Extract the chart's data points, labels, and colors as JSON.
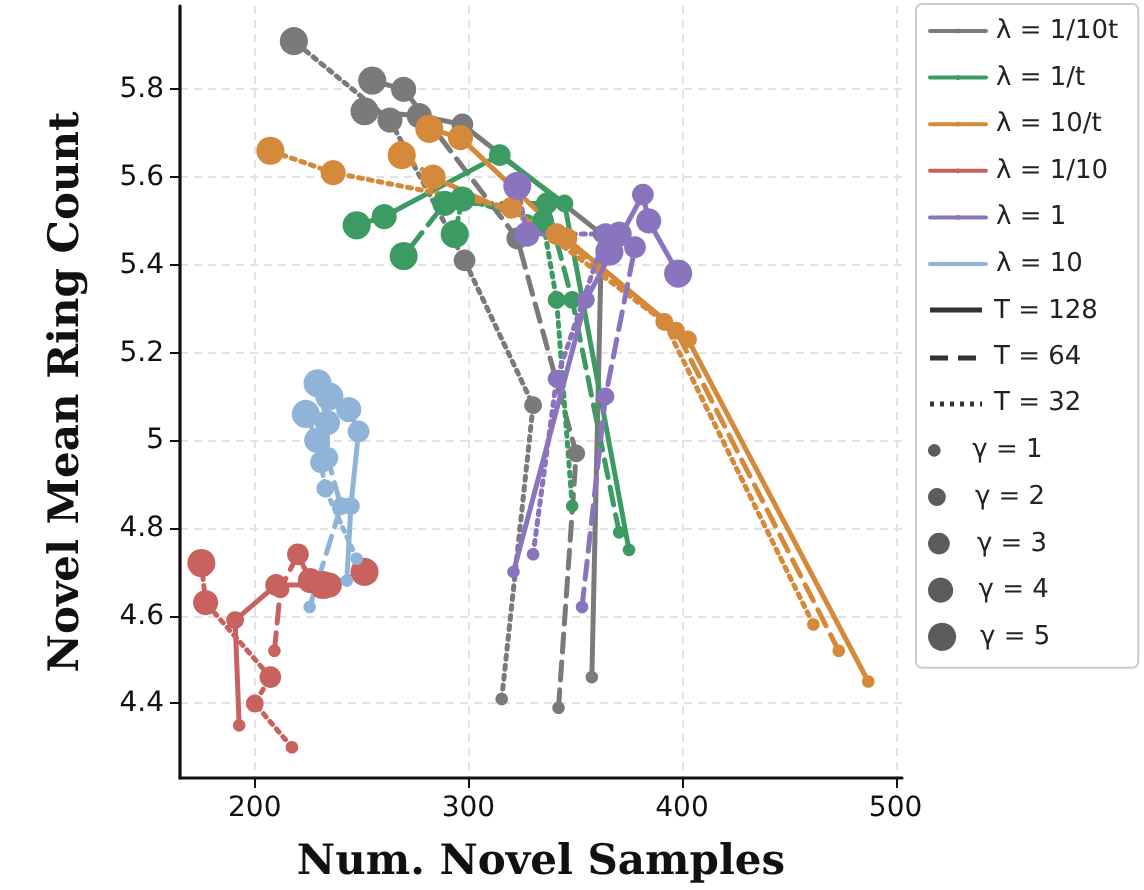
{
  "chart_data": {
    "type": "line",
    "xlabel": "Num. Novel Samples",
    "ylabel": "Novel Mean Ring Count",
    "xlim": [
      165,
      503
    ],
    "xticks": [
      200,
      300,
      400,
      500
    ],
    "ylim": [
      4.23,
      5.99
    ],
    "yticks": [
      4.4,
      4.6,
      4.8,
      5.0,
      5.2,
      5.4,
      5.6,
      5.8
    ],
    "grid": true,
    "legend": "right",
    "size_legend": [
      {
        "value": 1,
        "label": "γ = 1"
      },
      {
        "value": 2,
        "label": "γ = 2"
      },
      {
        "value": 3,
        "label": "γ = 3"
      },
      {
        "value": 4,
        "label": "γ = 4"
      },
      {
        "value": 5,
        "label": "γ = 5"
      }
    ],
    "series": [
      {
        "name": "λ = 1/10t",
        "color": "#7a7a7a",
        "line_style": "solid",
        "x": [
          357.8,
          362.4,
          297.2,
          277,
          251.4
        ],
        "values": [
          4.46,
          5.47,
          5.72,
          5.74,
          5.75
        ]
      },
      {
        "type": "bubble",
        "color": "#7a7a7a",
        "x": [
          357.8,
          362.4,
          297.2,
          277,
          251.4
        ],
        "values": [
          4.46,
          5.47,
          5.72,
          5.74,
          5.75
        ],
        "sizes": [
          1,
          2,
          3,
          4,
          5
        ]
      },
      {
        "color": "#7a7a7a",
        "line_style": "dashed",
        "x": [
          342.2,
          350.5,
          322.9,
          269.7,
          255
        ],
        "values": [
          4.39,
          4.97,
          5.46,
          5.8,
          5.82
        ]
      },
      {
        "type": "bubble",
        "color": "#7a7a7a",
        "x": [
          342.2,
          350.5,
          322.9,
          269.7,
          255
        ],
        "values": [
          4.39,
          4.97,
          5.46,
          5.8,
          5.82
        ],
        "sizes": [
          1,
          2,
          3,
          4,
          5
        ]
      },
      {
        "color": "#7a7a7a",
        "line_style": "dotted",
        "x": [
          315.6,
          330.3,
          298.2,
          263.3,
          218.3
        ],
        "values": [
          4.41,
          5.08,
          5.41,
          5.73,
          5.91
        ]
      },
      {
        "type": "bubble",
        "color": "#7a7a7a",
        "x": [
          315.6,
          330.3,
          298.2,
          263.3,
          218.3
        ],
        "values": [
          4.41,
          5.08,
          5.41,
          5.73,
          5.91
        ],
        "sizes": [
          1,
          2,
          3,
          4,
          5
        ]
      },
      {
        "name": "λ = 1/t",
        "color": "#3c9b62",
        "line_style": "solid",
        "x": [
          375.2,
          345,
          314.7,
          260.6,
          247.7
        ],
        "values": [
          4.75,
          5.54,
          5.65,
          5.51,
          5.49
        ]
      },
      {
        "type": "bubble",
        "color": "#3c9b62",
        "x": [
          375.2,
          345,
          314.7,
          260.6,
          247.7
        ],
        "values": [
          4.75,
          5.54,
          5.65,
          5.51,
          5.49
        ],
        "sizes": [
          1,
          2,
          3,
          4,
          5
        ]
      },
      {
        "color": "#3c9b62",
        "line_style": "dashed",
        "x": [
          370.6,
          348.6,
          336.7,
          289,
          269.7
        ],
        "values": [
          4.79,
          5.32,
          5.54,
          5.54,
          5.42
        ]
      },
      {
        "type": "bubble",
        "color": "#3c9b62",
        "x": [
          370.6,
          348.6,
          336.7,
          289,
          269.7
        ],
        "values": [
          4.79,
          5.32,
          5.54,
          5.54,
          5.42
        ],
        "sizes": [
          1,
          2,
          3,
          4,
          5
        ]
      },
      {
        "color": "#3c9b62",
        "line_style": "dotted",
        "x": [
          348.6,
          341.3,
          334.9,
          297.2,
          293.6
        ],
        "values": [
          4.85,
          5.32,
          5.5,
          5.55,
          5.47
        ]
      },
      {
        "type": "bubble",
        "color": "#3c9b62",
        "x": [
          348.6,
          341.3,
          334.9,
          297.2,
          293.6
        ],
        "values": [
          4.85,
          5.32,
          5.5,
          5.55,
          5.47
        ],
        "sizes": [
          1,
          2,
          3,
          4,
          5
        ]
      },
      {
        "name": "λ = 10/t",
        "color": "#d4893b",
        "line_style": "solid",
        "x": [
          487.2,
          402.8,
          345.9,
          296.3,
          281.7
        ],
        "values": [
          4.45,
          5.23,
          5.46,
          5.69,
          5.71
        ]
      },
      {
        "type": "bubble",
        "color": "#d4893b",
        "x": [
          487.2,
          402.8,
          345.9,
          296.3,
          281.7
        ],
        "values": [
          4.45,
          5.23,
          5.46,
          5.69,
          5.71
        ],
        "sizes": [
          1,
          2,
          3,
          4,
          5
        ]
      },
      {
        "color": "#d4893b",
        "line_style": "dashed",
        "x": [
          473.4,
          397.2,
          341.3,
          283.5,
          268.8
        ],
        "values": [
          4.52,
          5.25,
          5.47,
          5.6,
          5.65
        ]
      },
      {
        "type": "bubble",
        "color": "#d4893b",
        "x": [
          473.4,
          397.2,
          341.3,
          283.5,
          268.8
        ],
        "values": [
          4.52,
          5.25,
          5.47,
          5.6,
          5.65
        ],
        "sizes": [
          1,
          2,
          3,
          4,
          5
        ]
      },
      {
        "color": "#d4893b",
        "line_style": "dotted",
        "x": [
          461.5,
          391.7,
          320.2,
          236.7,
          207.3
        ],
        "values": [
          4.58,
          5.27,
          5.53,
          5.61,
          5.66
        ]
      },
      {
        "type": "bubble",
        "color": "#d4893b",
        "x": [
          461.5,
          391.7,
          320.2,
          236.7,
          207.3
        ],
        "values": [
          4.58,
          5.27,
          5.53,
          5.61,
          5.66
        ],
        "sizes": [
          1,
          2,
          3,
          4,
          5
        ]
      },
      {
        "name": "λ = 1/10",
        "color": "#c8625f",
        "line_style": "solid",
        "x": [
          192.7,
          190.8,
          210,
          234.9,
          251.4
        ],
        "values": [
          4.35,
          4.59,
          4.67,
          4.67,
          4.7
        ]
      },
      {
        "type": "bubble",
        "color": "#c8625f",
        "x": [
          192.7,
          190.8,
          210,
          234.9,
          251.4
        ],
        "values": [
          4.35,
          4.59,
          4.67,
          4.67,
          4.7
        ],
        "sizes": [
          1,
          2,
          3,
          4,
          5
        ]
      },
      {
        "color": "#c8625f",
        "line_style": "dashed",
        "x": [
          209.2,
          212,
          220.2,
          226,
          232
        ],
        "values": [
          4.52,
          4.66,
          4.74,
          4.68,
          4.67
        ]
      },
      {
        "type": "bubble",
        "color": "#c8625f",
        "x": [
          209.2,
          212,
          220.2,
          226,
          232
        ],
        "values": [
          4.52,
          4.66,
          4.74,
          4.68,
          4.67
        ],
        "sizes": [
          1,
          2,
          3,
          4,
          5
        ]
      },
      {
        "color": "#c8625f",
        "line_style": "dotted",
        "x": [
          217.4,
          200,
          207.3,
          177,
          175
        ],
        "values": [
          4.3,
          4.4,
          4.46,
          4.63,
          4.72
        ]
      },
      {
        "type": "bubble",
        "color": "#c8625f",
        "x": [
          217.4,
          200,
          207.3,
          177,
          175
        ],
        "values": [
          4.3,
          4.4,
          4.46,
          4.63,
          4.72
        ],
        "sizes": [
          1,
          2,
          3,
          4,
          5
        ]
      },
      {
        "name": "λ = 1",
        "color": "#8b74be",
        "line_style": "solid",
        "x": [
          321.1,
          355,
          381.7,
          384.4,
          398.2
        ],
        "values": [
          4.7,
          5.32,
          5.56,
          5.5,
          5.38
        ]
      },
      {
        "type": "bubble",
        "color": "#8b74be",
        "x": [
          321.1,
          355,
          381.7,
          384.4,
          398.2
        ],
        "values": [
          4.7,
          5.32,
          5.56,
          5.5,
          5.38
        ],
        "sizes": [
          1,
          2,
          3,
          4,
          5
        ]
      },
      {
        "color": "#8b74be",
        "line_style": "dashed",
        "x": [
          353.2,
          364.2,
          378,
          370.6,
          366
        ],
        "values": [
          4.62,
          5.1,
          5.44,
          5.47,
          5.43
        ]
      },
      {
        "type": "bubble",
        "color": "#8b74be",
        "x": [
          353.2,
          364.2,
          378,
          370.6,
          366
        ],
        "values": [
          4.62,
          5.1,
          5.44,
          5.47,
          5.43
        ],
        "sizes": [
          1,
          2,
          3,
          4,
          5
        ]
      },
      {
        "color": "#8b74be",
        "line_style": "dotted",
        "x": [
          330.3,
          341.3,
          364.2,
          327.5,
          322.9
        ],
        "values": [
          4.74,
          5.14,
          5.47,
          5.47,
          5.58
        ]
      },
      {
        "type": "bubble",
        "color": "#8b74be",
        "x": [
          330.3,
          341.3,
          364.2,
          327.5,
          322.9
        ],
        "values": [
          4.74,
          5.14,
          5.47,
          5.47,
          5.58
        ],
        "sizes": [
          1,
          2,
          3,
          4,
          5
        ]
      },
      {
        "name": "λ = 10",
        "color": "#8fb4d8",
        "line_style": "solid",
        "x": [
          243.1,
          245,
          248.6,
          244,
          234.9
        ],
        "values": [
          4.68,
          4.85,
          5.02,
          5.07,
          5.1
        ]
      },
      {
        "type": "bubble",
        "color": "#8fb4d8",
        "x": [
          243.1,
          245,
          248.6,
          244,
          234.9
        ],
        "values": [
          4.68,
          4.85,
          5.02,
          5.07,
          5.1
        ],
        "sizes": [
          1,
          2,
          3,
          4,
          5
        ]
      },
      {
        "color": "#8fb4d8",
        "line_style": "dashed",
        "x": [
          225.7,
          240.4,
          234,
          234,
          229.4
        ],
        "values": [
          4.62,
          4.85,
          4.96,
          5.04,
          5.13
        ]
      },
      {
        "type": "bubble",
        "color": "#8fb4d8",
        "x": [
          225.7,
          240.4,
          234,
          234,
          229.4
        ],
        "values": [
          4.62,
          4.85,
          4.96,
          5.04,
          5.13
        ],
        "sizes": [
          1,
          2,
          3,
          4,
          5
        ]
      },
      {
        "color": "#8fb4d8",
        "line_style": "dotted",
        "x": [
          247.7,
          233,
          231,
          229,
          223.9
        ],
        "values": [
          4.73,
          4.89,
          4.95,
          5.0,
          5.06
        ]
      },
      {
        "type": "bubble",
        "color": "#8fb4d8",
        "x": [
          247.7,
          233,
          231,
          229,
          223.9
        ],
        "values": [
          4.73,
          4.89,
          4.95,
          5.0,
          5.06
        ],
        "sizes": [
          1,
          2,
          3,
          4,
          5
        ]
      }
    ],
    "annotations": [
      "T = 128",
      "T = 64",
      "T = 32"
    ]
  }
}
